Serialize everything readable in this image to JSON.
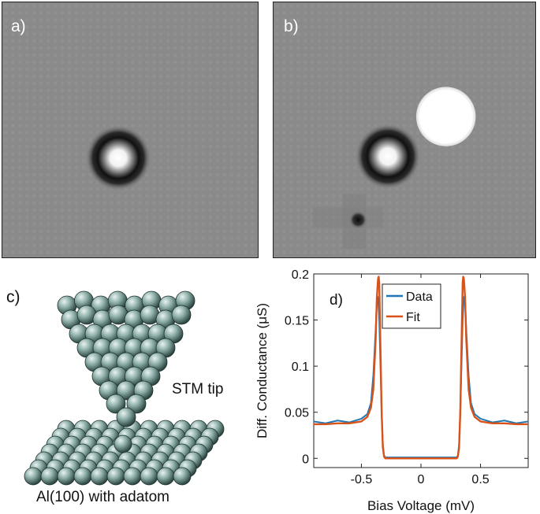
{
  "panels": {
    "a": {
      "label": "a)"
    },
    "b": {
      "label": "b)"
    },
    "c": {
      "label": "c)",
      "tip_label": "STM tip",
      "surface_label": "Al(100) with adatom"
    },
    "d": {
      "label": "d)"
    }
  },
  "chart_data": {
    "type": "line",
    "title": "",
    "xlabel": "Bias Voltage (mV)",
    "ylabel": "Diff. Conductance (μS)",
    "xlim": [
      -0.9,
      0.9
    ],
    "ylim": [
      -0.01,
      0.2
    ],
    "xticks": [
      -0.5,
      0,
      0.5
    ],
    "xtick_labels": [
      "-0.5",
      "0",
      "0.5"
    ],
    "yticks": [
      0,
      0.05,
      0.1,
      0.15,
      0.2
    ],
    "ytick_labels": [
      "0",
      "0.05",
      "0.1",
      "0.15",
      "0.2"
    ],
    "legend_position": "top-right",
    "grid": false,
    "series": [
      {
        "name": "Data",
        "color": "#1f77b4",
        "x": [
          -0.9,
          -0.8,
          -0.7,
          -0.6,
          -0.5,
          -0.45,
          -0.42,
          -0.4,
          -0.38,
          -0.37,
          -0.36,
          -0.35,
          -0.34,
          -0.33,
          -0.32,
          -0.31,
          -0.3,
          -0.2,
          -0.1,
          0,
          0.1,
          0.2,
          0.3,
          0.31,
          0.32,
          0.33,
          0.34,
          0.35,
          0.36,
          0.37,
          0.38,
          0.4,
          0.42,
          0.45,
          0.5,
          0.6,
          0.7,
          0.8,
          0.9
        ],
        "y": [
          0.04,
          0.038,
          0.041,
          0.039,
          0.043,
          0.048,
          0.06,
          0.09,
          0.14,
          0.172,
          0.175,
          0.15,
          0.1,
          0.05,
          0.015,
          0.003,
          0.001,
          0.001,
          0.001,
          0.001,
          0.001,
          0.001,
          0.001,
          0.003,
          0.015,
          0.05,
          0.1,
          0.15,
          0.175,
          0.172,
          0.14,
          0.09,
          0.06,
          0.048,
          0.043,
          0.039,
          0.041,
          0.038,
          0.04
        ]
      },
      {
        "name": "Fit",
        "color": "#d95319",
        "x": [
          -0.9,
          -0.8,
          -0.7,
          -0.6,
          -0.5,
          -0.45,
          -0.42,
          -0.4,
          -0.38,
          -0.37,
          -0.36,
          -0.355,
          -0.35,
          -0.34,
          -0.33,
          -0.32,
          -0.31,
          -0.3,
          -0.2,
          -0.1,
          0,
          0.1,
          0.2,
          0.3,
          0.31,
          0.32,
          0.33,
          0.34,
          0.35,
          0.355,
          0.36,
          0.37,
          0.38,
          0.4,
          0.42,
          0.45,
          0.5,
          0.6,
          0.7,
          0.8,
          0.9
        ],
        "y": [
          0.037,
          0.037,
          0.038,
          0.038,
          0.04,
          0.045,
          0.055,
          0.075,
          0.13,
          0.175,
          0.195,
          0.197,
          0.19,
          0.12,
          0.05,
          0.012,
          0.002,
          0.0,
          0.0,
          0.0,
          0.0,
          0.0,
          0.0,
          0.0,
          0.002,
          0.012,
          0.05,
          0.12,
          0.19,
          0.197,
          0.195,
          0.175,
          0.13,
          0.075,
          0.055,
          0.045,
          0.04,
          0.038,
          0.038,
          0.037,
          0.037
        ]
      }
    ]
  }
}
